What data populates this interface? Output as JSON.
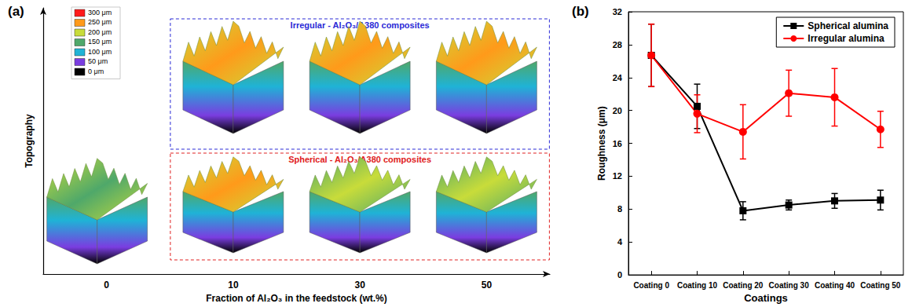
{
  "chart_data": [
    {
      "type": "surface",
      "panel": "(a)",
      "x_label": "Fraction of Al₂O₃ in the feedstock (wt.%)",
      "y_label": "Topography",
      "categories": [
        0,
        10,
        30,
        50
      ],
      "tick_labels": "x",
      "groups": [
        {
          "title": "Irregular - Al₂O₃/A380 composites",
          "color": "#2a2ad6",
          "categories": [
            10,
            30,
            50
          ]
        },
        {
          "title": "Spherical - Al₂O₃/A380 composites",
          "color": "#e02020",
          "categories": [
            10,
            30,
            50
          ]
        }
      ],
      "color_scale": {
        "ticks": [
          {
            "value": 300,
            "label": "300 μm"
          },
          {
            "value": 250,
            "label": "250 μm"
          },
          {
            "value": 200,
            "label": "200 μm"
          },
          {
            "value": 150,
            "label": "150 μm"
          },
          {
            "value": 100,
            "label": "100 μm"
          },
          {
            "value": 50,
            "label": "50 μm"
          },
          {
            "value": 0,
            "label": "0 μm"
          }
        ],
        "colors": [
          "#ff1a1a",
          "#ff9a1a",
          "#c8dc3a",
          "#4fa86a",
          "#1fb3d6",
          "#7a3de0",
          "#000000"
        ]
      }
    },
    {
      "type": "line",
      "panel": "(b)",
      "x_label": "Coatings",
      "y_label": "Roughness (μm)",
      "categories": [
        "Coating 0",
        "Coating 10",
        "Coating 20",
        "Coating 30",
        "Coating 40",
        "Coating 50"
      ],
      "ylim": [
        0,
        32
      ],
      "yticks": [
        0,
        4,
        8,
        12,
        16,
        20,
        24,
        28,
        32
      ],
      "legend": "upper right",
      "grid": false,
      "series": [
        {
          "name": "Spherical alumina",
          "color": "#000000",
          "marker": "square",
          "values": [
            26.7,
            20.5,
            7.8,
            8.5,
            9.0,
            9.1
          ],
          "errors": [
            3.8,
            2.7,
            1.1,
            0.6,
            0.9,
            1.2
          ]
        },
        {
          "name": "Irregular alumina",
          "color": "#ff0000",
          "marker": "circle",
          "values": [
            26.7,
            19.6,
            17.4,
            22.1,
            21.6,
            17.7
          ],
          "errors": [
            3.8,
            2.3,
            3.3,
            2.8,
            3.5,
            2.2
          ]
        }
      ]
    }
  ]
}
